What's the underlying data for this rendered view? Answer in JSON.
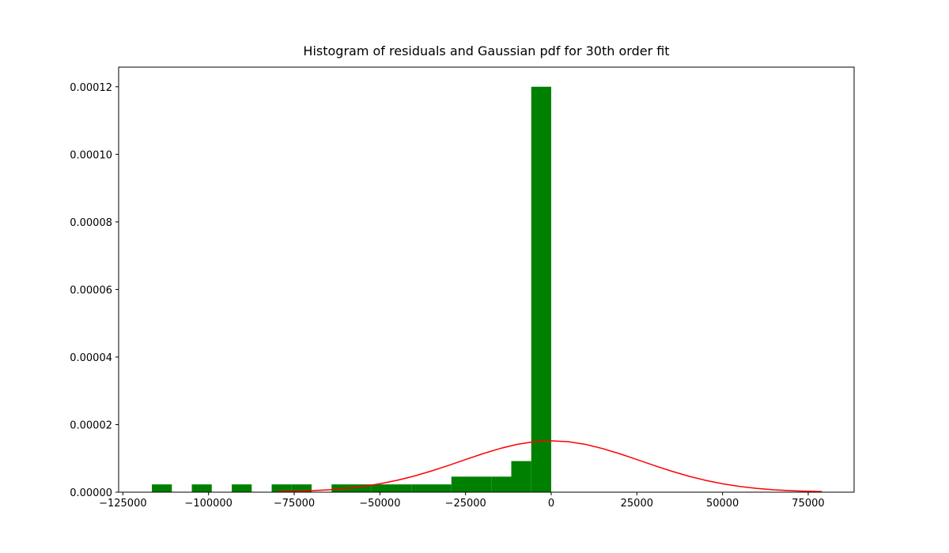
{
  "chart_data": {
    "type": "histogram",
    "title": "Histogram of residuals and Gaussian pdf for 30th order fit",
    "bins": [
      -116540,
      -110713,
      -104886,
      -99059,
      -93232,
      -87405,
      -81578,
      -75751,
      -69924,
      -64097,
      -58270,
      -52443,
      -46616,
      -40789,
      -34962,
      -29135,
      -23308,
      -17481,
      -11654,
      -5827,
      0
    ],
    "values": [
      2.3e-06,
      0,
      2.3e-06,
      0,
      2.3e-06,
      0,
      2.3e-06,
      2.3e-06,
      0,
      2.3e-06,
      2.3e-06,
      2.3e-06,
      2.3e-06,
      2.3e-06,
      2.3e-06,
      4.6e-06,
      4.6e-06,
      4.6e-06,
      9.2e-06,
      0.00012
    ],
    "color": "#008000",
    "curve": {
      "type": "line",
      "color": "#ff0000",
      "x": [
        -80000,
        -75000,
        -70000,
        -65000,
        -60000,
        -55000,
        -50000,
        -45000,
        -40000,
        -35000,
        -30000,
        -25000,
        -20000,
        -15000,
        -10000,
        -5000,
        0,
        5000,
        10000,
        15000,
        20000,
        25000,
        30000,
        35000,
        40000,
        45000,
        50000,
        55000,
        60000,
        65000,
        70000,
        75000,
        79000
      ],
      "values": [
        1.5e-07,
        2.6e-07,
        4.3e-07,
        7.1e-07,
        1.11e-06,
        1.69e-06,
        2.48e-06,
        3.5e-06,
        4.76e-06,
        6.25e-06,
        7.91e-06,
        9.66e-06,
        1.137e-05,
        1.291e-05,
        1.414e-05,
        1.493e-05,
        1.52e-05,
        1.493e-05,
        1.414e-05,
        1.291e-05,
        1.137e-05,
        9.66e-06,
        7.91e-06,
        6.25e-06,
        4.76e-06,
        3.5e-06,
        2.48e-06,
        1.69e-06,
        1.11e-06,
        7.1e-07,
        4.3e-07,
        2.6e-07,
        1.7e-07
      ]
    },
    "xlim": [
      -126240,
      88390
    ],
    "ylim": [
      0,
      0.0001258
    ],
    "xticks": [
      {
        "value": -125000,
        "label": "−125000"
      },
      {
        "value": -100000,
        "label": "−100000"
      },
      {
        "value": -75000,
        "label": "−75000"
      },
      {
        "value": -50000,
        "label": "−50000"
      },
      {
        "value": -25000,
        "label": "−25000"
      },
      0,
      25000,
      50000,
      75000
    ],
    "yticks": [
      {
        "value": 0,
        "label": "0.00000"
      },
      {
        "value": 2e-05,
        "label": "0.00002"
      },
      {
        "value": 4e-05,
        "label": "0.00004"
      },
      {
        "value": 6e-05,
        "label": "0.00006"
      },
      {
        "value": 8e-05,
        "label": "0.00008"
      },
      {
        "value": 0.0001,
        "label": "0.00010"
      },
      {
        "value": 0.00012,
        "label": "0.00012"
      }
    ]
  }
}
